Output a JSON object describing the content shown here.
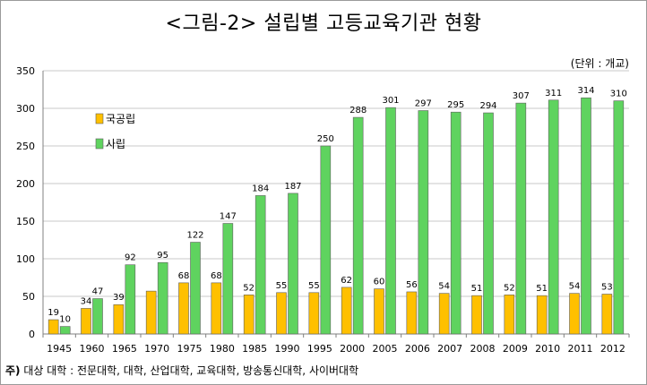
{
  "header": {
    "title": "<그림-2> 설립별 고등교육기관 현황",
    "unit": "(단위 : 개교)"
  },
  "footnote": {
    "prefix": "주)",
    "text": " 대상 대학 : 전문대학, 대학, 산업대학, 교육대학, 방송통신대학, 사이버대학"
  },
  "chart_data": {
    "type": "bar",
    "categories": [
      "1945",
      "1960",
      "1965",
      "1970",
      "1975",
      "1980",
      "1985",
      "1990",
      "1995",
      "2000",
      "2005",
      "2006",
      "2007",
      "2008",
      "2009",
      "2010",
      "2011",
      "2012"
    ],
    "series": [
      {
        "name": "국공립",
        "color": "#ffc000",
        "values": [
          19,
          34,
          39,
          57,
          68,
          68,
          52,
          55,
          55,
          62,
          60,
          56,
          54,
          51,
          52,
          51,
          54,
          53
        ],
        "labels": [
          "19",
          "34",
          "39",
          "",
          "68",
          "68",
          "52",
          "55",
          "55",
          "62",
          "60",
          "56",
          "54",
          "51",
          "52",
          "51",
          "54",
          "53"
        ]
      },
      {
        "name": "사립",
        "color": "#5fd35f",
        "values": [
          10,
          47,
          92,
          95,
          122,
          147,
          184,
          187,
          250,
          288,
          301,
          297,
          295,
          294,
          307,
          311,
          314,
          310
        ],
        "labels": [
          "10",
          "47",
          "92",
          "95",
          "122",
          "147",
          "184",
          "187",
          "250",
          "288",
          "301",
          "297",
          "295",
          "294",
          "307",
          "311",
          "314",
          "310"
        ]
      }
    ],
    "yticks": [
      "0",
      "50",
      "100",
      "150",
      "200",
      "250",
      "300",
      "350"
    ],
    "ylim": [
      0,
      350
    ],
    "grid": true,
    "legend": "upper-left"
  }
}
